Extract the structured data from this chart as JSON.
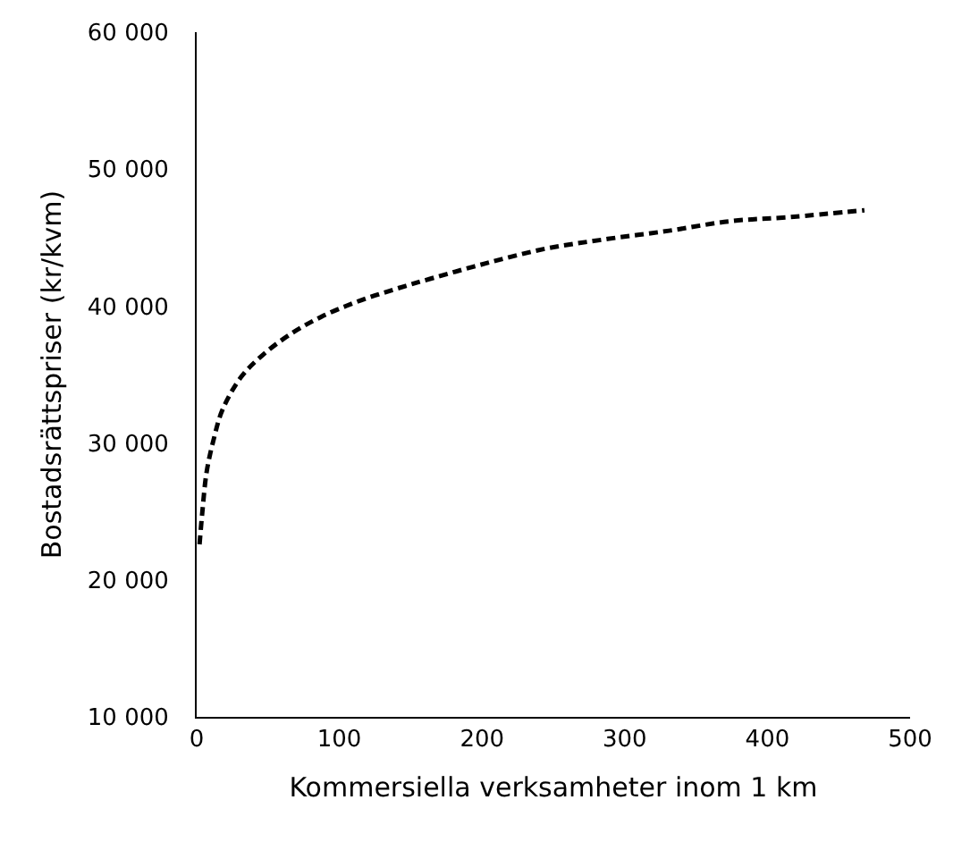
{
  "chart_data": {
    "type": "line",
    "xlabel": "Kommersiella verksamheter inom 1 km",
    "ylabel": "Bostadsrättspriser (kr/kvm)",
    "x": [
      2,
      4,
      7,
      12,
      18,
      31,
      46,
      65,
      87,
      112,
      138,
      164,
      202,
      245,
      288,
      331,
      374,
      416,
      468
    ],
    "series": [
      {
        "color": "#000000",
        "values": [
          22600,
          25000,
          27900,
          30300,
          32400,
          34800,
          36400,
          37900,
          39200,
          40300,
          41200,
          42000,
          43100,
          44200,
          44900,
          45500,
          46200,
          46500,
          47000
        ]
      }
    ],
    "xlim": [
      0,
      500
    ],
    "xticks": [
      0,
      100,
      200,
      300,
      400,
      500
    ],
    "ylim": [
      10000,
      60000
    ],
    "yticks": [
      {
        "value": 10000,
        "label": "10 000"
      },
      {
        "value": 20000,
        "label": "20 000"
      },
      {
        "value": 30000,
        "label": "30 000"
      },
      {
        "value": 40000,
        "label": "40 000"
      },
      {
        "value": 50000,
        "label": "50 000"
      },
      {
        "value": 60000,
        "label": "60 000"
      }
    ],
    "marker": "none",
    "line_style": "dashed"
  }
}
